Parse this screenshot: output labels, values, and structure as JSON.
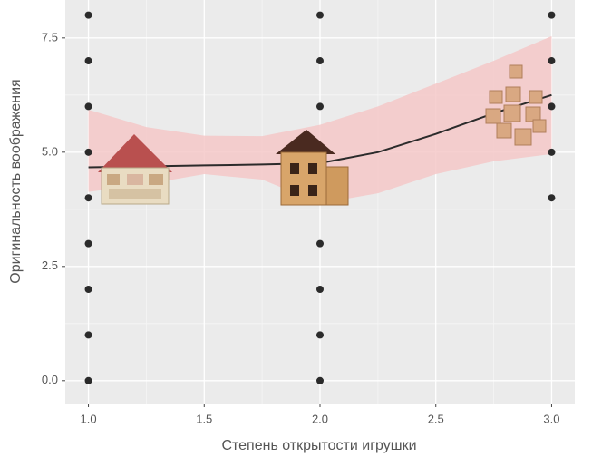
{
  "chart_data": {
    "type": "scatter",
    "x_label": "Степень открытости игрушки",
    "y_label": "Оригинальность воображения",
    "xlim": [
      0.9,
      3.1
    ],
    "ylim": [
      -0.5,
      8.33
    ],
    "xticks": [
      {
        "value": 1,
        "label": "1.0"
      },
      {
        "value": 1.5,
        "label": "1.5"
      },
      {
        "value": 2,
        "label": "2.0"
      },
      {
        "value": 2.5,
        "label": "2.5"
      },
      {
        "value": 3,
        "label": "3.0"
      }
    ],
    "yticks": [
      {
        "value": 0,
        "label": "0.0"
      },
      {
        "value": 2.5,
        "label": "2.5"
      },
      {
        "value": 5,
        "label": "5.0"
      },
      {
        "value": 7.5,
        "label": "7.5"
      }
    ],
    "grid": true,
    "points": {
      "color": "#2b2b2b",
      "x": [
        1,
        1,
        1,
        1,
        1,
        1,
        1,
        1,
        1,
        2,
        2,
        2,
        2,
        2,
        2,
        2,
        3,
        3,
        3,
        3,
        3
      ],
      "y": [
        0,
        1,
        2,
        3,
        4,
        5,
        6,
        7,
        8,
        0,
        1,
        2,
        3,
        6,
        7,
        8,
        4,
        5,
        6,
        7,
        8
      ]
    },
    "smooth": {
      "color": "#2b2b2b",
      "fill": "#f5c8c8",
      "x": [
        1,
        1.25,
        1.5,
        1.75,
        2,
        2.25,
        2.5,
        2.75,
        3
      ],
      "y": [
        4.67,
        4.69,
        4.71,
        4.73,
        4.76,
        5.0,
        5.4,
        5.85,
        6.25
      ],
      "lower": [
        4.13,
        4.3,
        4.52,
        4.4,
        3.88,
        4.1,
        4.52,
        4.8,
        4.96
      ],
      "upper": [
        5.93,
        5.55,
        5.36,
        5.35,
        5.6,
        6.0,
        6.5,
        7.0,
        7.54
      ]
    }
  }
}
